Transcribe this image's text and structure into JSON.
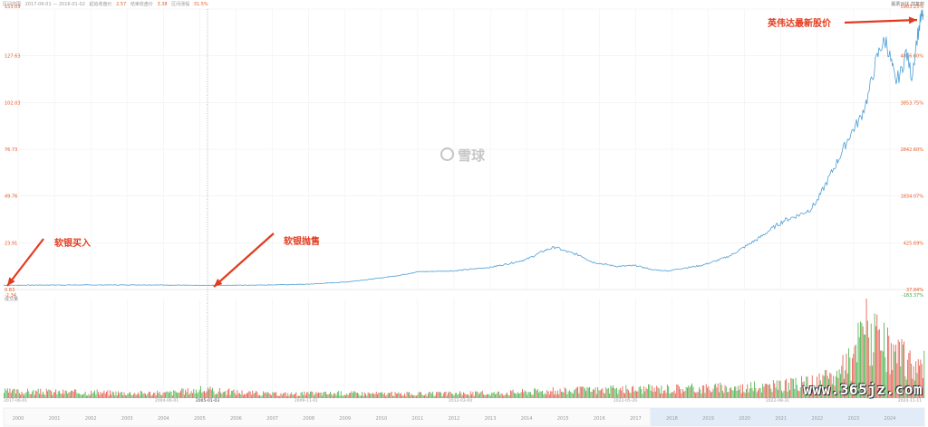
{
  "header": {
    "range_label": "区间范围",
    "range_value": "2017-06-01 — 2016-01-02",
    "start_label": "起始收盘价",
    "start_value": "2.57",
    "end_label": "结束收盘价",
    "end_value": "3.38",
    "change_label": "区间涨幅",
    "change_value": "31.5%",
    "right_links": "股票对比  前复权"
  },
  "annotations": {
    "buy": "软银买入",
    "sell": "软银抛售",
    "latest": "英伟达最新股价"
  },
  "watermark": {
    "logo_text": "雪球",
    "site": "www.365jz.com"
  },
  "colors": {
    "line": "#4f9fd6",
    "up": "#e04a3a",
    "down": "#3cab3c",
    "arrow": "#e23b1f",
    "axis_left": "#e85a24"
  },
  "chart_data": {
    "type": "line",
    "price_axis_left": [
      "153.03",
      "127.63",
      "102.03",
      "76.73",
      "49.76",
      "23.91",
      "0.83",
      "-2.34"
    ],
    "price_axis_right": [
      "5903.23%",
      "4856.60%",
      "3853.75%",
      "2842.60%",
      "1834.07%",
      "425.69%",
      "37.84%",
      "-183.37%"
    ],
    "volume_label": "成交量",
    "x_marker_labels": [
      "2017-06-01",
      "2004-06-01",
      "2005-01-03",
      "2009-11-01",
      "2012-03-04",
      "2022-05-26",
      "2022-08-31",
      "2024-11-11"
    ],
    "year_labels": [
      "2000",
      "2001",
      "2002",
      "2003",
      "2004",
      "2005",
      "2006",
      "2007",
      "2008",
      "2009",
      "2010",
      "2011",
      "2012",
      "2013",
      "2014",
      "2015",
      "2016",
      "2017",
      "2018",
      "2019",
      "2020",
      "2021",
      "2022",
      "2023",
      "2024"
    ],
    "price_series": [
      [
        1999.6,
        0.4
      ],
      [
        2000.5,
        0.5
      ],
      [
        2001.5,
        0.55
      ],
      [
        2002.5,
        0.55
      ],
      [
        2003.5,
        0.6
      ],
      [
        2004.5,
        0.45
      ],
      [
        2004.9,
        0.3
      ],
      [
        2005.8,
        0.4
      ],
      [
        2007,
        0.6
      ],
      [
        2008,
        1.0
      ],
      [
        2009,
        2.2
      ],
      [
        2009.8,
        4.0
      ],
      [
        2010.5,
        6.0
      ],
      [
        2011,
        8.0
      ],
      [
        2012,
        8.5
      ],
      [
        2012.5,
        9.5
      ],
      [
        2013,
        10.5
      ],
      [
        2013.5,
        12.5
      ],
      [
        2014,
        15.0
      ],
      [
        2014.5,
        20.0
      ],
      [
        2014.8,
        22.0
      ],
      [
        2015,
        20.0
      ],
      [
        2015.5,
        17.0
      ],
      [
        2015.8,
        13.5
      ],
      [
        2016.2,
        12.0
      ],
      [
        2016.5,
        11.0
      ],
      [
        2017,
        11.5
      ],
      [
        2017.5,
        9.0
      ],
      [
        2017.9,
        8.5
      ],
      [
        2018.3,
        10.0
      ],
      [
        2018.8,
        11.5
      ],
      [
        2019.2,
        14.0
      ],
      [
        2019.6,
        17.0
      ],
      [
        2020,
        22.0
      ],
      [
        2020.4,
        27.0
      ],
      [
        2020.8,
        33.0
      ],
      [
        2021.1,
        37.0
      ],
      [
        2021.5,
        40.0
      ],
      [
        2021.8,
        43.0
      ],
      [
        2022,
        48.0
      ],
      [
        2022.3,
        60.0
      ],
      [
        2022.6,
        72.0
      ],
      [
        2022.9,
        85.0
      ],
      [
        2023.2,
        95.0
      ],
      [
        2023.4,
        107.0
      ],
      [
        2023.6,
        125.0
      ],
      [
        2023.75,
        135.0
      ],
      [
        2023.9,
        138.0
      ],
      [
        2024.05,
        125.0
      ],
      [
        2024.15,
        115.0
      ],
      [
        2024.3,
        120.0
      ],
      [
        2024.45,
        132.0
      ],
      [
        2024.6,
        118.0
      ],
      [
        2024.75,
        140.0
      ],
      [
        2024.85,
        150.0
      ],
      [
        2024.92,
        153.0
      ]
    ],
    "volume_note": "daily volume bars, up days red / down days green; heavy volume 2022–2024",
    "volume_levels": [
      [
        2000,
        0.08
      ],
      [
        2002,
        0.07
      ],
      [
        2004,
        0.06
      ],
      [
        2005,
        0.1
      ],
      [
        2007,
        0.05
      ],
      [
        2009,
        0.06
      ],
      [
        2011,
        0.05
      ],
      [
        2013,
        0.06
      ],
      [
        2014,
        0.08
      ],
      [
        2016,
        0.1
      ],
      [
        2018,
        0.12
      ],
      [
        2020,
        0.13
      ],
      [
        2021,
        0.15
      ],
      [
        2022,
        0.2
      ],
      [
        2022.5,
        0.28
      ],
      [
        2023,
        0.45
      ],
      [
        2023.3,
        1.0
      ],
      [
        2023.6,
        0.7
      ],
      [
        2024,
        0.55
      ],
      [
        2024.5,
        0.45
      ],
      [
        2024.9,
        0.4
      ]
    ],
    "grid": true
  }
}
